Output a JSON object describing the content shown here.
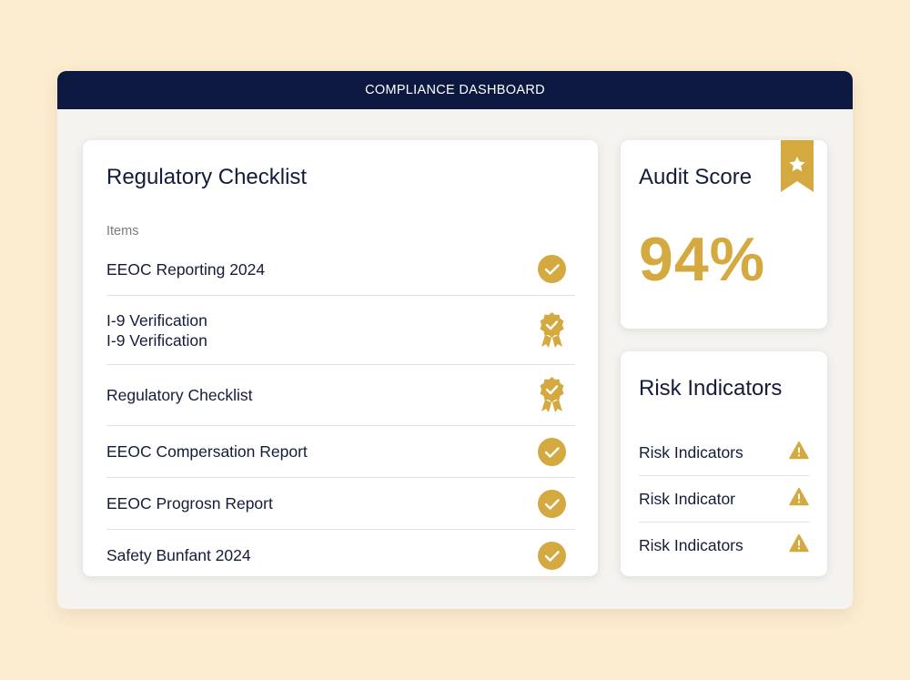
{
  "window": {
    "title": "COMPLIANCE DASHBOARD"
  },
  "checklist": {
    "title": "Regulatory Checklist",
    "section_label": "Items",
    "items": [
      {
        "lines": [
          "EEOC Reporting 2024"
        ],
        "status_icon": "check-circle-icon"
      },
      {
        "lines": [
          "I-9 Verification",
          "I-9 Verification"
        ],
        "status_icon": "award-badge-icon"
      },
      {
        "lines": [
          "Regulatory Checklist"
        ],
        "status_icon": "award-badge-icon"
      },
      {
        "lines": [
          "EEOC Compersation Report"
        ],
        "status_icon": "check-circle-icon"
      },
      {
        "lines": [
          "EEOC Progrosn Report"
        ],
        "status_icon": "check-circle-icon"
      },
      {
        "lines": [
          "Safety Bunfant 2024"
        ],
        "status_icon": "check-circle-icon"
      }
    ]
  },
  "audit": {
    "title": "Audit Score",
    "score": "94%",
    "badge_icon": "star-ribbon-icon"
  },
  "risk": {
    "title": "Risk Indicators",
    "items": [
      {
        "label": "Risk Indicators",
        "icon": "warning-icon"
      },
      {
        "label": "Risk Indicator",
        "icon": "warning-icon"
      },
      {
        "label": "Risk Indicators",
        "icon": "warning-icon"
      }
    ]
  },
  "colors": {
    "accent": "#d4a940",
    "navy": "#0d1840",
    "background": "#fcecd0",
    "panel": "#f5f3ef"
  }
}
